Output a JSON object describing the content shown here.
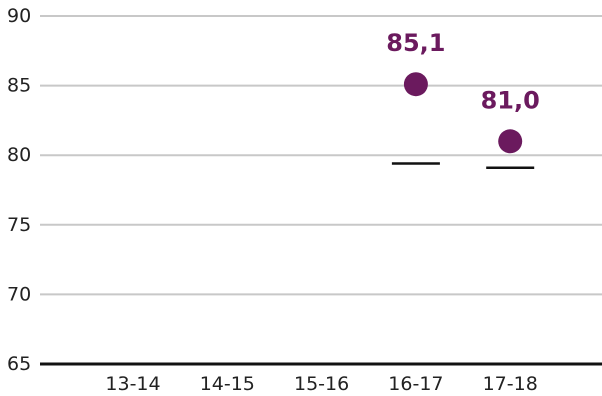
{
  "chart_data": {
    "type": "scatter",
    "categories": [
      "13-14",
      "14-15",
      "15-16",
      "16-17",
      "17-18"
    ],
    "series": [
      {
        "values": [
          null,
          null,
          null,
          85.1,
          81.0
        ],
        "labels": [
          "",
          "",
          "",
          "85,1",
          "81,0"
        ]
      }
    ],
    "reference_marks": [
      null,
      null,
      null,
      79.4,
      79.1
    ],
    "y_ticks": [
      65,
      70,
      75,
      80,
      85,
      90
    ],
    "y_tick_labels": [
      "65",
      "70",
      "75",
      "80",
      "85",
      "90"
    ],
    "ylim": [
      65,
      90
    ],
    "grid": true,
    "title": "",
    "xlabel": "",
    "ylabel": "",
    "colors": {
      "point": "#6b1a5e",
      "grid": "#c8c8c8",
      "baseline": "#111111",
      "reference": "#111111",
      "text": "#222222"
    }
  }
}
